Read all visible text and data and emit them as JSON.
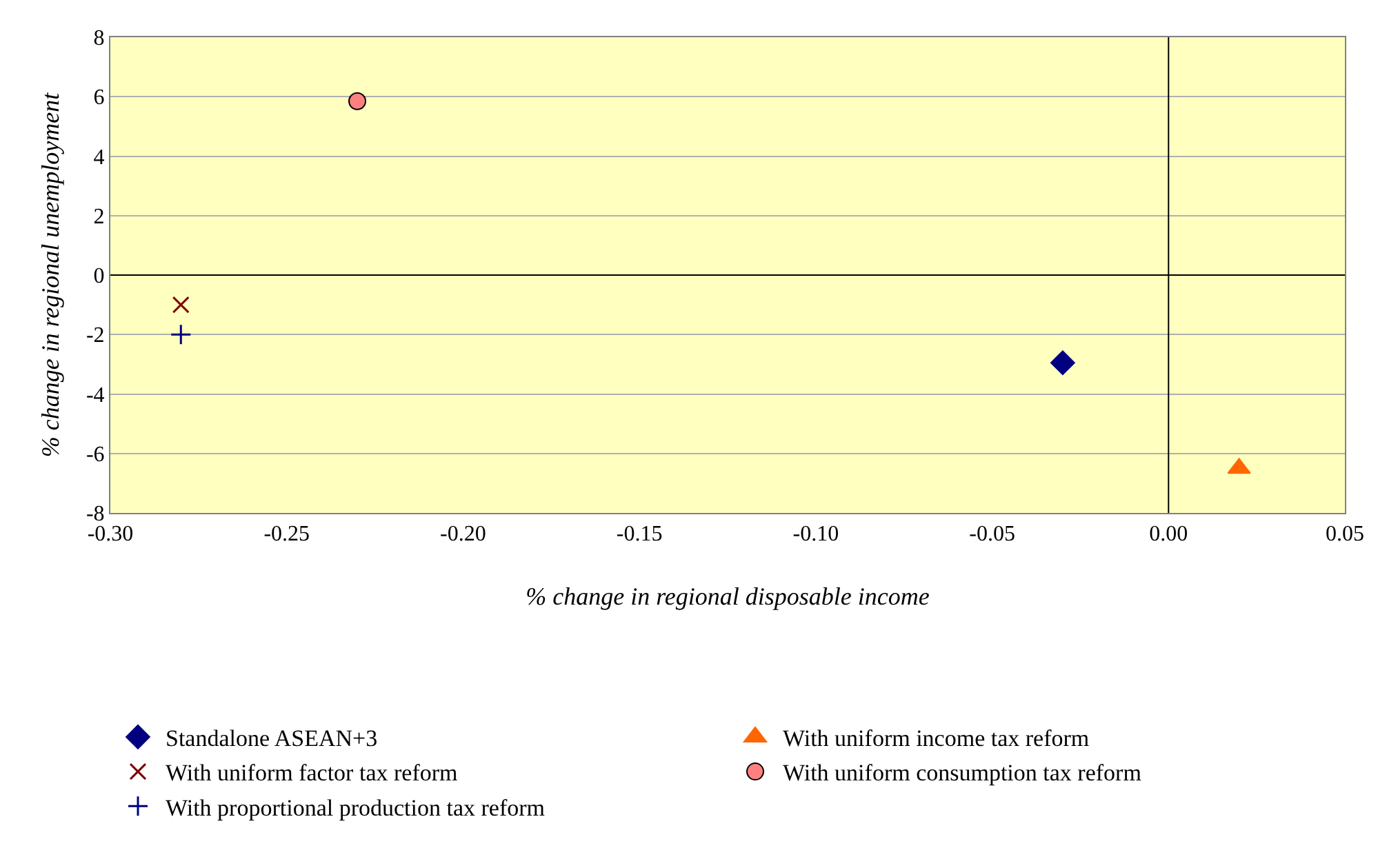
{
  "chart_data": {
    "type": "scatter",
    "xlabel": "% change in regional disposable income",
    "ylabel": "% change in regional unemployment",
    "xlim": [
      -0.3,
      0.05
    ],
    "xticks": [
      {
        "value": -0.3,
        "label": "-0.30"
      },
      {
        "value": -0.25,
        "label": "-0.25"
      },
      {
        "value": -0.2,
        "label": "-0.20"
      },
      {
        "value": -0.15,
        "label": "-0.15"
      },
      {
        "value": -0.1,
        "label": "-0.10"
      },
      {
        "value": -0.05,
        "label": "-0.05"
      },
      {
        "value": 0,
        "label": "0.00"
      },
      {
        "value": 0.05,
        "label": "0.05"
      }
    ],
    "ylim": [
      -8,
      8
    ],
    "yticks": [
      -8,
      -6,
      -4,
      -2,
      0,
      2,
      4,
      6,
      8
    ],
    "grid": "y",
    "legend": "bottom",
    "ref_lines": [
      {
        "axis": "x",
        "value": 0,
        "color": "#000000"
      }
    ],
    "series": [
      {
        "name": "Standalone ASEAN+3",
        "color": "#000080",
        "marker": "diamond",
        "x": [
          -0.03
        ],
        "values": [
          -2.95
        ]
      },
      {
        "name": "With uniform income tax reform",
        "color": "#ff6600",
        "marker": "triangle",
        "x": [
          0.02
        ],
        "values": [
          -6.5
        ]
      },
      {
        "name": "With uniform factor tax reform",
        "color": "#800000",
        "marker": "cross",
        "x": [
          -0.28
        ],
        "values": [
          -1
        ]
      },
      {
        "name": "With uniform consumption tax reform",
        "color": "#ff8080",
        "marker": "circle",
        "x": [
          -0.23
        ],
        "values": [
          5.85
        ]
      },
      {
        "name": "With proportional production tax reform",
        "color": "#000080",
        "marker": "plus",
        "x": [
          -0.28
        ],
        "values": [
          -2
        ]
      }
    ]
  }
}
